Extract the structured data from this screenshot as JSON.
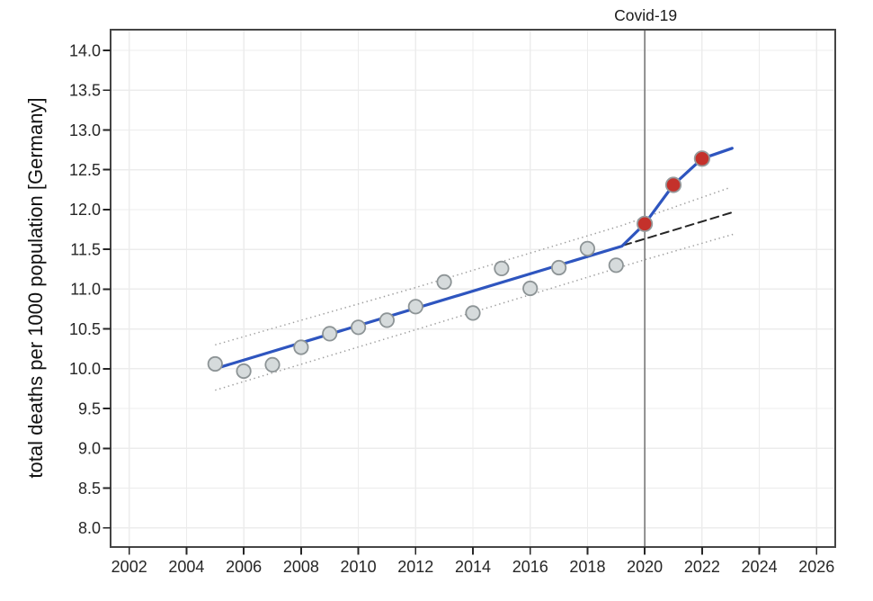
{
  "chart_data": {
    "type": "scatter",
    "title": "",
    "xlabel": "",
    "ylabel": "total deaths per 1000 population [Germany]",
    "annotation": {
      "label": "Covid-19",
      "x": 2020
    },
    "xlim": [
      2001.35,
      2026.65
    ],
    "ylim": [
      7.76,
      14.26
    ],
    "x_ticks": [
      2002,
      2004,
      2006,
      2008,
      2010,
      2012,
      2014,
      2016,
      2018,
      2020,
      2022,
      2024,
      2026
    ],
    "x_tick_labels": [
      "2002",
      "2004",
      "2006",
      "2008",
      "2010",
      "2012",
      "2014",
      "2016",
      "2018",
      "2020",
      "2022",
      "2024",
      "2026"
    ],
    "y_ticks": [
      8.0,
      8.5,
      9.0,
      9.5,
      10.0,
      10.5,
      11.0,
      11.5,
      12.0,
      12.5,
      13.0,
      13.5,
      14.0
    ],
    "y_tick_labels": [
      "8.0",
      "8.5",
      "9.0",
      "9.5",
      "10.0",
      "10.5",
      "11.0",
      "11.5",
      "12.0",
      "12.5",
      "13.0",
      "13.5",
      "14.0"
    ],
    "grid": true,
    "legend": "none",
    "series": [
      {
        "name": "observed-deaths-pre-covid",
        "kind": "points",
        "fill": "#d6dbdc",
        "stroke": "#8d9496",
        "radius": 7.7,
        "x": [
          2005,
          2006,
          2007,
          2008,
          2009,
          2010,
          2011,
          2012,
          2013,
          2014,
          2015,
          2016,
          2017,
          2018,
          2019
        ],
        "y": [
          10.06,
          9.97,
          10.05,
          10.27,
          10.44,
          10.52,
          10.61,
          10.78,
          11.09,
          10.7,
          11.26,
          11.01,
          11.27,
          11.51,
          11.3
        ]
      },
      {
        "name": "observed-deaths-covid-years",
        "kind": "points",
        "fill": "#c4312b",
        "stroke": "#95999b",
        "radius": 8.2,
        "x": [
          2020,
          2021,
          2022
        ],
        "y": [
          11.82,
          12.31,
          12.64
        ]
      },
      {
        "name": "model-fit-line",
        "kind": "line",
        "style": "solid",
        "color": "#2e55bf",
        "width": 3.2,
        "points": [
          [
            2005,
            10.0
          ],
          [
            2019.2,
            11.54
          ],
          [
            2020,
            11.82
          ],
          [
            2021,
            12.31
          ],
          [
            2022,
            12.64
          ],
          [
            2023.05,
            12.77
          ]
        ]
      },
      {
        "name": "pre-covid-trend-extrapolation",
        "kind": "line",
        "style": "dashed",
        "color": "#262626",
        "width": 2,
        "points": [
          [
            2019.25,
            11.55
          ],
          [
            2023.1,
            11.97
          ]
        ]
      },
      {
        "name": "prediction-band-upper",
        "kind": "line",
        "style": "dotted",
        "color": "#9e9e9e",
        "width": 1.5,
        "points": [
          [
            2005,
            10.3
          ],
          [
            2012,
            11.02
          ],
          [
            2019.2,
            11.8
          ],
          [
            2023,
            12.28
          ]
        ]
      },
      {
        "name": "prediction-band-lower",
        "kind": "line",
        "style": "dotted",
        "color": "#9e9e9e",
        "width": 1.5,
        "points": [
          [
            2005,
            9.73
          ],
          [
            2012,
            10.49
          ],
          [
            2020,
            11.37
          ],
          [
            2023.1,
            11.69
          ]
        ]
      }
    ],
    "colors": {
      "background": "#ffffff",
      "grid": "#ececec",
      "border": "#454545",
      "tick": "#262626",
      "tick_label": "#262626",
      "annotation_line": "#7f7f7f",
      "annotation_text": "#1a1a1a"
    }
  }
}
